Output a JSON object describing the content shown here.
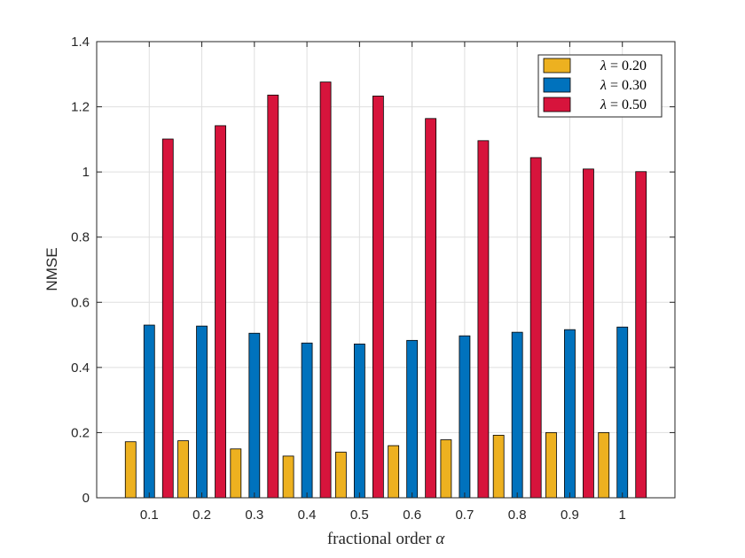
{
  "chart_data": {
    "type": "bar",
    "categories": [
      "0.1",
      "0.2",
      "0.3",
      "0.4",
      "0.5",
      "0.6",
      "0.7",
      "0.8",
      "0.9",
      "1"
    ],
    "series": [
      {
        "name": "λ = 0.20",
        "symbol": "λ",
        "value_text": "= 0.20",
        "color": "#EDB120",
        "values": [
          0.172,
          0.175,
          0.15,
          0.128,
          0.14,
          0.16,
          0.178,
          0.192,
          0.2,
          0.2
        ]
      },
      {
        "name": "λ = 0.30",
        "symbol": "λ",
        "value_text": "= 0.30",
        "color": "#0072BD",
        "values": [
          0.53,
          0.527,
          0.505,
          0.475,
          0.472,
          0.483,
          0.497,
          0.508,
          0.516,
          0.524
        ]
      },
      {
        "name": "λ = 0.50",
        "symbol": "λ",
        "value_text": "= 0.50",
        "color": "#D7143C",
        "values": [
          1.101,
          1.142,
          1.236,
          1.276,
          1.233,
          1.164,
          1.096,
          1.044,
          1.009,
          1.001
        ]
      }
    ],
    "xlabel": {
      "text": "fractional order",
      "symbol": "α"
    },
    "ylabel": "NMSE",
    "ylim": [
      0,
      1.4
    ],
    "yticks": [
      "0",
      "0.2",
      "0.4",
      "0.6",
      "0.8",
      "1",
      "1.2",
      "1.4"
    ],
    "ytick_values": [
      0,
      0.2,
      0.4,
      0.6,
      0.8,
      1,
      1.2,
      1.4
    ],
    "grid": true,
    "legend": "top-right"
  }
}
